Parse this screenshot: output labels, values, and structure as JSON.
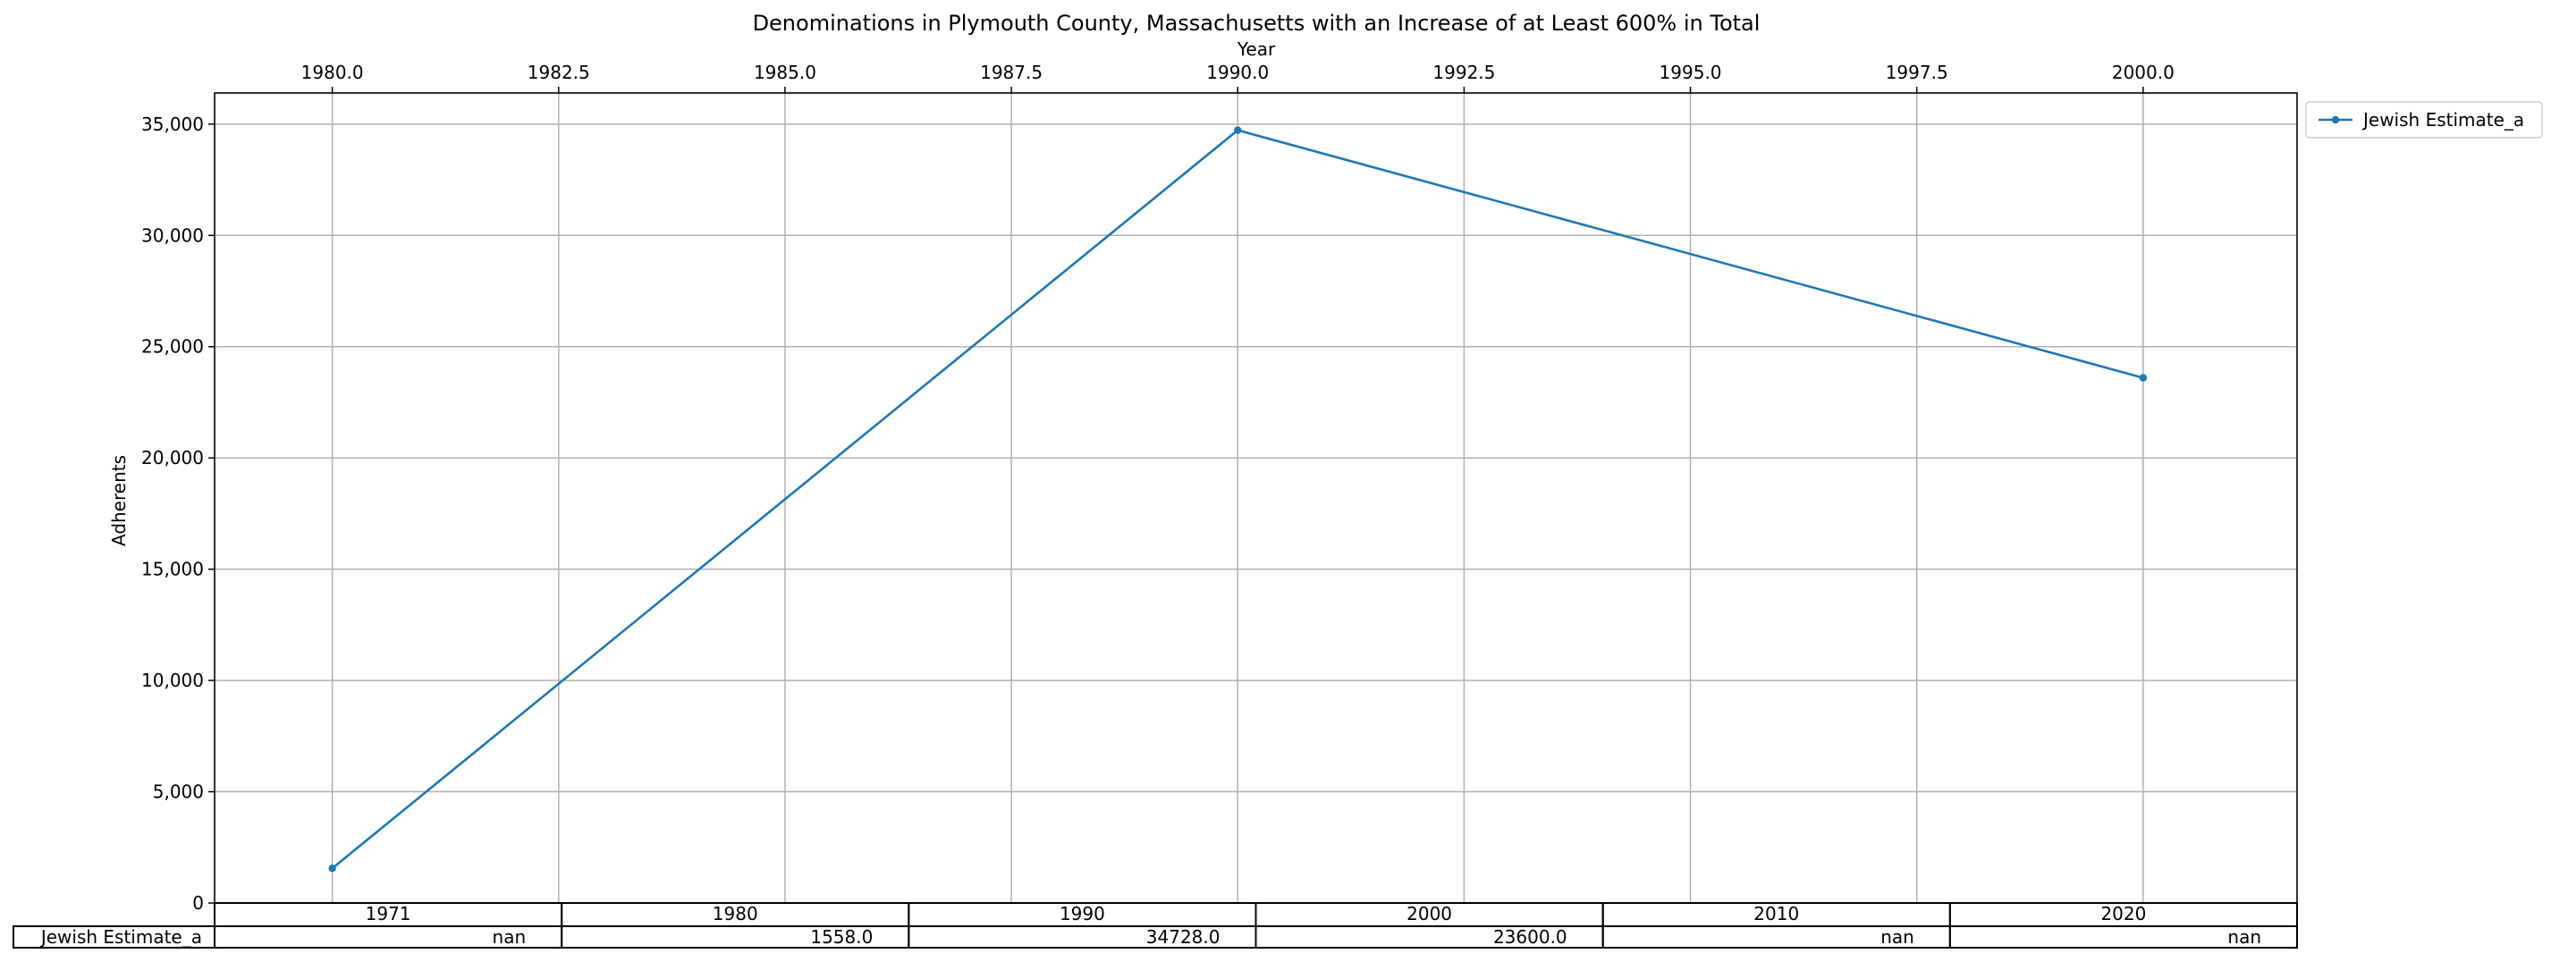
{
  "chart_data": {
    "type": "line",
    "title": "Denominations in Plymouth County, Massachusetts with an Increase of at Least 600% in Total",
    "xlabel": "Year",
    "ylabel": "Adherents",
    "xlim": [
      1978.7,
      2001.7
    ],
    "ylim": [
      0,
      36400
    ],
    "x_ticks": [
      "1980.0",
      "1982.5",
      "1985.0",
      "1987.5",
      "1990.0",
      "1992.5",
      "1995.0",
      "1997.5",
      "2000.0"
    ],
    "y_ticks": [
      "0",
      "5,000",
      "10,000",
      "15,000",
      "20,000",
      "25,000",
      "30,000",
      "35,000"
    ],
    "grid": true,
    "legend_position": "outside-top-right",
    "series": [
      {
        "name": "Jewish Estimate_a",
        "color": "#1f77b4",
        "x": [
          1980,
          1990,
          2000
        ],
        "y": [
          1558,
          34728,
          23600
        ]
      }
    ],
    "table": {
      "columns": [
        "1971",
        "1980",
        "1990",
        "2000",
        "2010",
        "2020"
      ],
      "rows": [
        {
          "label": "Jewish Estimate_a",
          "cells": [
            "nan",
            "1558.0",
            "34728.0",
            "23600.0",
            "nan",
            "nan"
          ]
        }
      ]
    }
  }
}
